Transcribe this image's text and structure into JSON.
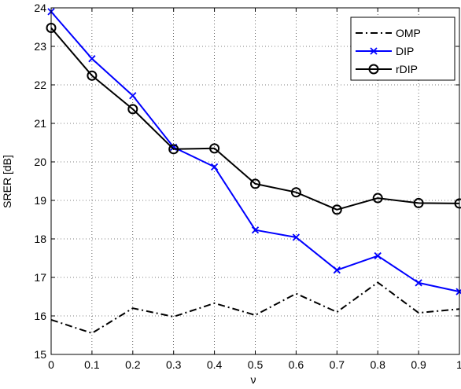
{
  "chart_data": {
    "type": "line",
    "x": [
      0,
      0.1,
      0.2,
      0.3,
      0.4,
      0.5,
      0.6,
      0.7,
      0.8,
      0.9,
      1
    ],
    "xticks": [
      "0",
      "0.1",
      "0.2",
      "0.3",
      "0.4",
      "0.5",
      "0.6",
      "0.7",
      "0.8",
      "0.9",
      "1"
    ],
    "yticks": [
      "15",
      "16",
      "17",
      "18",
      "19",
      "20",
      "21",
      "22",
      "23",
      "24"
    ],
    "xlim": [
      0,
      1
    ],
    "ylim": [
      15,
      24
    ],
    "xlabel": "ν",
    "ylabel": "SRER [dB]",
    "grid": true,
    "legend_position": "top-right",
    "series": [
      {
        "name": "OMP",
        "color": "#000000",
        "line_style": "dash-dot",
        "marker": "none",
        "values": [
          15.9,
          15.55,
          16.2,
          15.98,
          16.33,
          16.02,
          16.58,
          16.1,
          16.87,
          16.08,
          16.18
        ]
      },
      {
        "name": "DIP",
        "color": "#0000ff",
        "line_style": "solid",
        "marker": "x",
        "values": [
          23.9,
          22.68,
          21.72,
          20.38,
          19.87,
          18.23,
          18.04,
          17.19,
          17.56,
          16.86,
          16.63
        ]
      },
      {
        "name": "rDIP",
        "color": "#000000",
        "line_style": "solid",
        "marker": "circle",
        "values": [
          23.48,
          22.24,
          21.37,
          20.33,
          20.35,
          19.43,
          19.21,
          18.76,
          19.06,
          18.93,
          18.92
        ]
      }
    ]
  }
}
